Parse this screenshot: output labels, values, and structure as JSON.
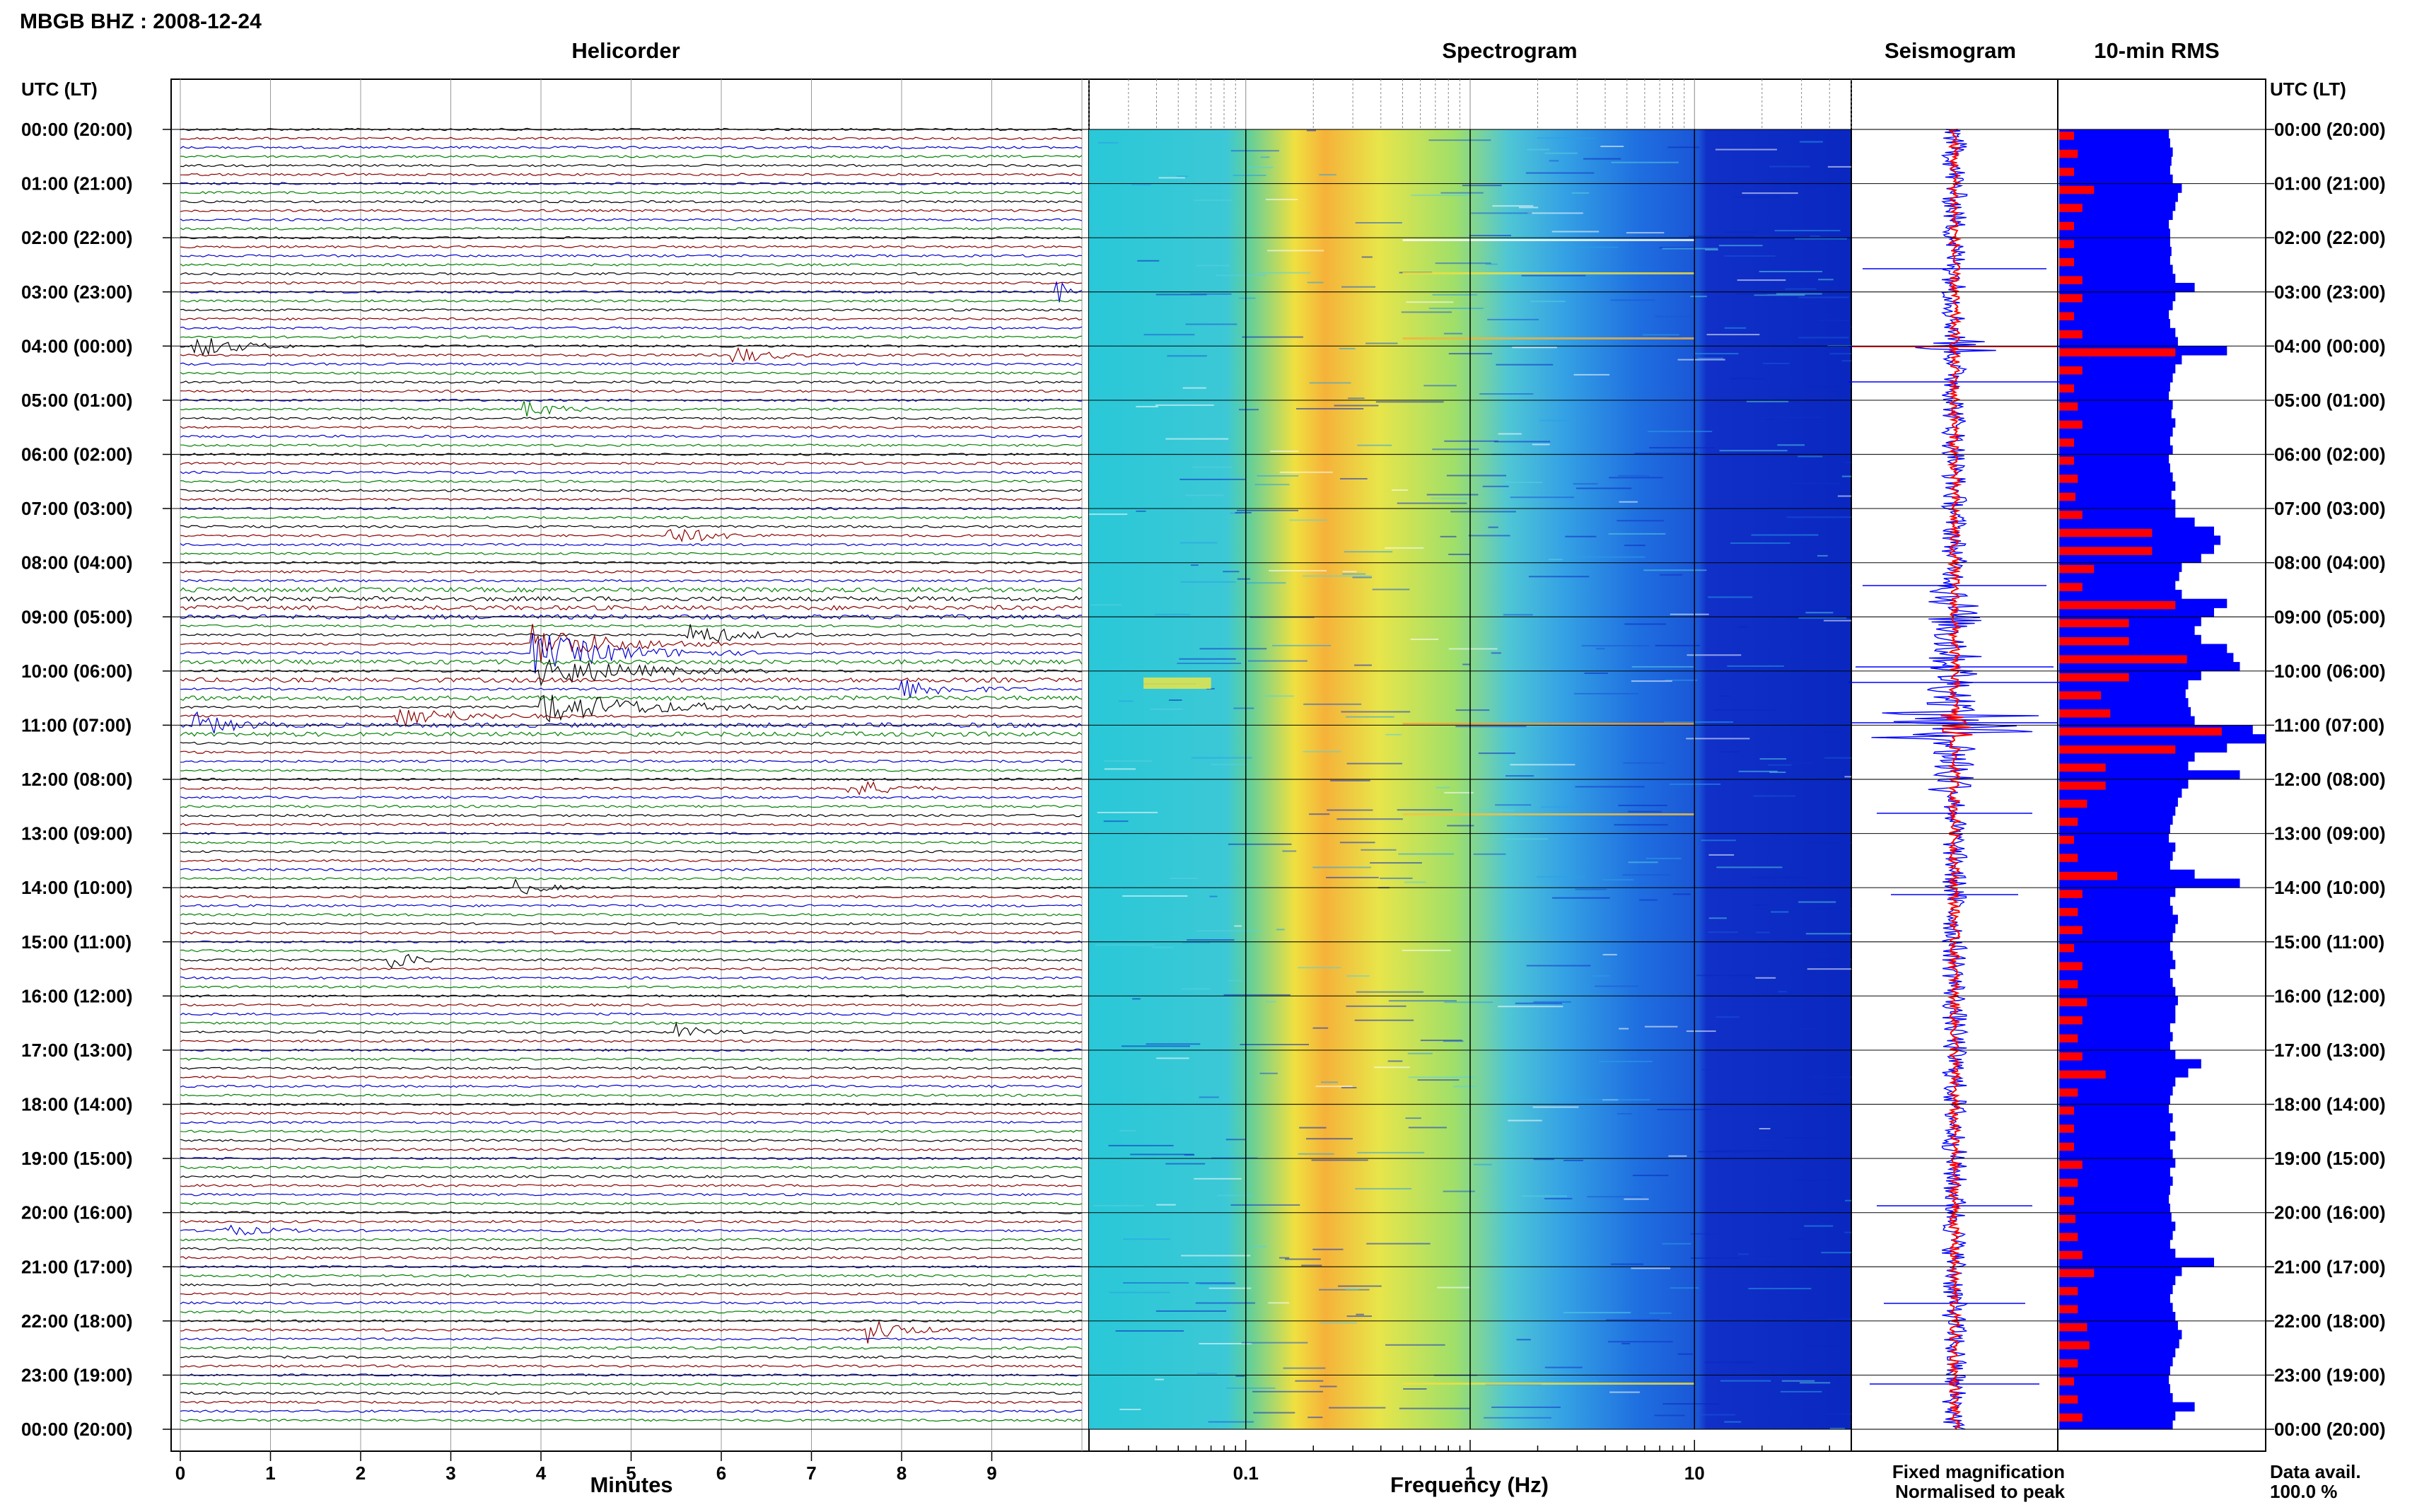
{
  "title": "MBGB BHZ : 2008-12-24",
  "panels": {
    "helicorder": "Helicorder",
    "spectrogram": "Spectrogram",
    "seismogram": "Seismogram",
    "rms": "10-min RMS"
  },
  "time_axis_label": "UTC (LT)",
  "time_labels": [
    "00:00 (20:00)",
    "01:00 (21:00)",
    "02:00 (22:00)",
    "03:00 (23:00)",
    "04:00 (00:00)",
    "05:00 (01:00)",
    "06:00 (02:00)",
    "07:00 (03:00)",
    "08:00 (04:00)",
    "09:00 (05:00)",
    "10:00 (06:00)",
    "11:00 (07:00)",
    "12:00 (08:00)",
    "13:00 (09:00)",
    "14:00 (10:00)",
    "15:00 (11:00)",
    "16:00 (12:00)",
    "17:00 (13:00)",
    "18:00 (14:00)",
    "19:00 (15:00)",
    "20:00 (16:00)",
    "21:00 (17:00)",
    "22:00 (18:00)",
    "23:00 (19:00)",
    "00:00 (20:00)"
  ],
  "helicorder_axis": {
    "label": "Minutes",
    "ticks": [
      "0",
      "1",
      "2",
      "3",
      "4",
      "5",
      "6",
      "7",
      "8",
      "9"
    ]
  },
  "spectrogram_axis": {
    "label": "Frequency (Hz)",
    "ticks": [
      "0.1",
      "1",
      "10"
    ]
  },
  "legend": {
    "fixed": "Fixed magnification",
    "normalised": "Normalised to peak",
    "fixed_color": "#0000ff",
    "normalised_color": "#ff0000"
  },
  "data_avail": {
    "label": "Data avail.",
    "value": "100.0 %"
  },
  "colors": {
    "trace_cycle": [
      "#000000",
      "#8b0000",
      "#0000cd",
      "#008000"
    ],
    "rms_bar": "#0000ff",
    "rms_norm": "#ff0000"
  },
  "chart_data": {
    "type": "helicorder",
    "station": "MBGB",
    "channel": "BHZ",
    "date": "2008-12-24",
    "rows_per_hour": 6,
    "minutes_per_row": 10,
    "x_range_minutes": [
      0,
      10
    ],
    "frequency_range_hz": [
      0.02,
      50
    ],
    "frequency_scale": "log",
    "rms_10min_relative": [
      0.85,
      0.86,
      0.88,
      0.87,
      0.86,
      0.88,
      0.95,
      0.92,
      0.9,
      0.88,
      0.85,
      0.86,
      0.86,
      0.87,
      0.86,
      0.88,
      0.9,
      1.05,
      0.9,
      0.88,
      0.85,
      0.86,
      0.9,
      0.92,
      1.3,
      0.95,
      0.9,
      0.88,
      0.86,
      0.85,
      0.88,
      0.87,
      0.9,
      0.88,
      0.86,
      0.88,
      0.85,
      0.86,
      0.88,
      0.9,
      0.87,
      0.9,
      0.9,
      1.05,
      1.2,
      1.25,
      1.2,
      1.1,
      0.95,
      0.93,
      0.9,
      0.95,
      1.3,
      1.2,
      1.1,
      1.05,
      1.1,
      1.3,
      1.35,
      1.4,
      1.1,
      1.0,
      0.98,
      1.0,
      1.02,
      1.05,
      1.5,
      1.6,
      1.3,
      1.05,
      1.0,
      1.4,
      1.0,
      0.95,
      0.92,
      0.9,
      0.88,
      0.86,
      0.85,
      0.9,
      0.88,
      0.86,
      1.05,
      1.4,
      0.9,
      0.86,
      0.88,
      0.92,
      0.9,
      0.88,
      0.86,
      0.88,
      0.9,
      0.86,
      0.88,
      0.9,
      0.92,
      0.9,
      0.9,
      0.86,
      0.88,
      0.86,
      0.9,
      1.1,
      1.0,
      0.9,
      0.88,
      0.86,
      0.85,
      0.88,
      0.86,
      0.9,
      0.86,
      0.88,
      0.9,
      0.86,
      0.88,
      0.86,
      0.85,
      0.86,
      0.87,
      0.9,
      0.88,
      0.86,
      0.9,
      1.2,
      0.95,
      0.9,
      0.88,
      0.86,
      0.88,
      0.9,
      0.92,
      0.95,
      0.93,
      0.9,
      0.88,
      0.86,
      0.85,
      0.86,
      0.88,
      1.05,
      0.9,
      0.88
    ],
    "rms_normalised_peak_hour": 11
  }
}
